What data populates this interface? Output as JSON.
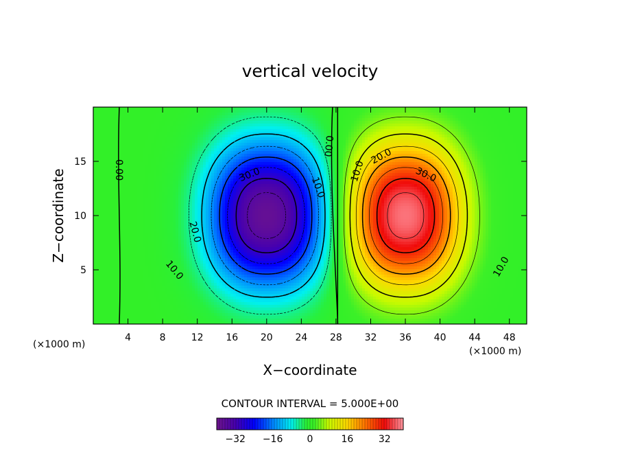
{
  "chart_data": {
    "type": "contour",
    "title": "vertical velocity",
    "xlabel": "X−coordinate",
    "ylabel": "Z−coordinate",
    "x_unit": "(×1000 m)",
    "z_unit": "(×1000 m)",
    "xlim": [
      0,
      50
    ],
    "ylim": [
      0,
      20
    ],
    "x_ticks": [
      4,
      8,
      12,
      16,
      20,
      24,
      28,
      32,
      36,
      40,
      44,
      48
    ],
    "x_tick_labels": [
      "4",
      "8",
      "12",
      "16",
      "20",
      "24",
      "28",
      "32",
      "36",
      "40",
      "44",
      "48"
    ],
    "y_ticks": [
      5,
      10,
      15
    ],
    "y_tick_labels": [
      "5",
      "10",
      "15"
    ],
    "contour_interval_text": "CONTOUR INTERVAL = 5.000E+00",
    "contour_interval": 5,
    "fields": {
      "downdraft": {
        "center_x": 20,
        "center_z": 10,
        "min_value": -38
      },
      "updraft": {
        "center_x": 36,
        "center_z": 10,
        "max_value": 38
      }
    },
    "contour_labels": [
      {
        "text": "0.00",
        "x": 3.0,
        "z": 14.2,
        "angle": 90
      },
      {
        "text": "10.0",
        "x": 9.4,
        "z": 5.0,
        "angle": 50
      },
      {
        "text": "20.0",
        "x": 11.8,
        "z": 8.5,
        "angle": 75
      },
      {
        "text": "30.0",
        "x": 18.0,
        "z": 13.8,
        "angle": -22
      },
      {
        "text": "10.0",
        "x": 26.0,
        "z": 12.6,
        "angle": 70
      },
      {
        "text": "0.00",
        "x": 27.2,
        "z": 16.4,
        "angle": 95
      },
      {
        "text": "10.0",
        "x": 30.4,
        "z": 14.1,
        "angle": -72
      },
      {
        "text": "20.0",
        "x": 33.2,
        "z": 15.5,
        "angle": -28
      },
      {
        "text": "30.0",
        "x": 38.4,
        "z": 13.8,
        "angle": 25
      },
      {
        "text": "10.0",
        "x": 47.0,
        "z": 5.3,
        "angle": -60
      }
    ],
    "colorbar": {
      "min": -40,
      "max": 40,
      "ticks": [
        -32,
        -16,
        0,
        16,
        32
      ],
      "tick_labels": [
        "−32",
        "−16",
        "0",
        "16",
        "32"
      ]
    }
  }
}
